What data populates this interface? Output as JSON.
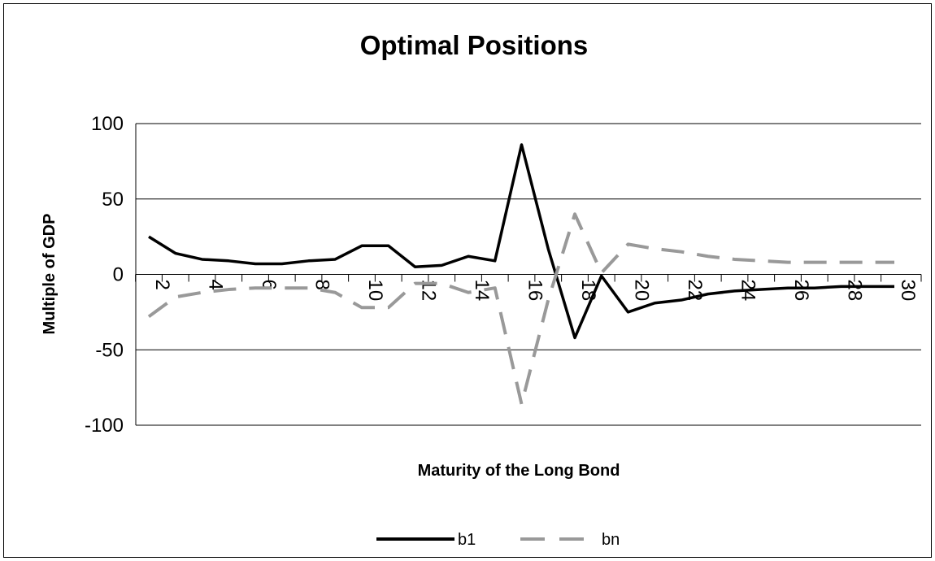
{
  "chart_data": {
    "type": "line",
    "title": "Optimal Positions",
    "xlabel": "Maturity of the Long Bond",
    "ylabel": "Multiple of GDP",
    "ylim": [
      -100,
      100
    ],
    "yticks": [
      -100,
      -50,
      0,
      50,
      100
    ],
    "x": [
      2,
      3,
      4,
      5,
      6,
      7,
      8,
      9,
      10,
      11,
      12,
      13,
      14,
      15,
      16,
      17,
      18,
      19,
      20,
      21,
      22,
      23,
      24,
      25,
      26,
      27,
      28,
      29,
      30
    ],
    "xtick_labels": [
      "2",
      "4",
      "6",
      "8",
      "10",
      "12",
      "14",
      "16",
      "18",
      "20",
      "22",
      "24",
      "26",
      "28",
      "30"
    ],
    "grid": "horizontal",
    "legend_position": "bottom",
    "series": [
      {
        "name": "b1",
        "color": "#000000",
        "style": "solid",
        "values": [
          25,
          14,
          10,
          9,
          7,
          7,
          9,
          10,
          19,
          19,
          5,
          6,
          12,
          9,
          86,
          17,
          -42,
          -1,
          -25,
          -19,
          -17,
          -13,
          -11,
          -10,
          -9,
          -9,
          -8,
          -8,
          -8
        ]
      },
      {
        "name": "bn",
        "color": "#999999",
        "style": "dashed",
        "values": [
          -28,
          -15,
          -12,
          -10,
          -9,
          -9,
          -9,
          -12,
          -22,
          -22,
          -6,
          -6,
          -12,
          -9,
          -86,
          -17,
          40,
          1,
          20,
          17,
          15,
          12,
          10,
          9,
          8,
          8,
          8,
          8,
          8
        ]
      }
    ]
  }
}
